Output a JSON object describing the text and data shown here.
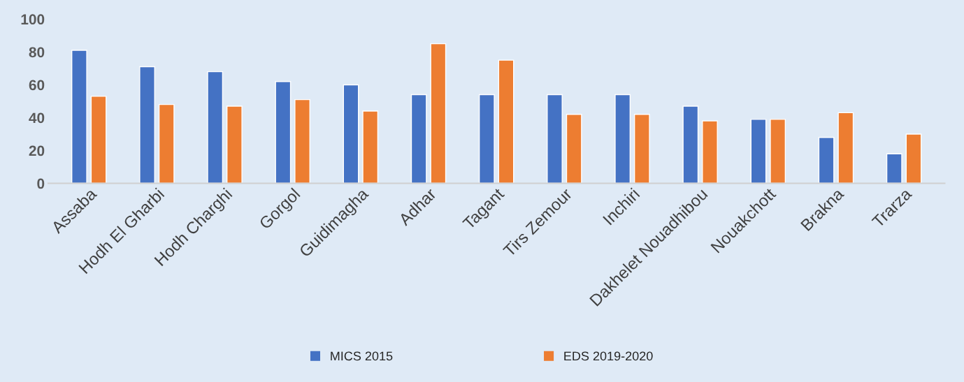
{
  "chart_data": {
    "type": "bar",
    "categories": [
      "Assaba",
      "Hodh El Gharbi",
      "Hodh Charghi",
      "Gorgol",
      "Guidimagha",
      "Adhar",
      "Tagant",
      "Tirs Zemour",
      "Inchiri",
      "Dakhelet Nouadhibou",
      "Nouakchott",
      "Brakna",
      "Trarza"
    ],
    "series": [
      {
        "name": "MICS 2015",
        "color": "#4472c4",
        "values": [
          81,
          71,
          68,
          62,
          60,
          54,
          54,
          54,
          54,
          47,
          39,
          28,
          18
        ]
      },
      {
        "name": "EDS 2019-2020",
        "color": "#ed7d31",
        "values": [
          53,
          48,
          47,
          51,
          44,
          85,
          75,
          42,
          42,
          38,
          39,
          43,
          30
        ]
      }
    ],
    "ylim": [
      0,
      100
    ],
    "yticks": [
      0,
      20,
      40,
      60,
      80,
      100
    ],
    "grid": false,
    "legend": "bottom"
  }
}
